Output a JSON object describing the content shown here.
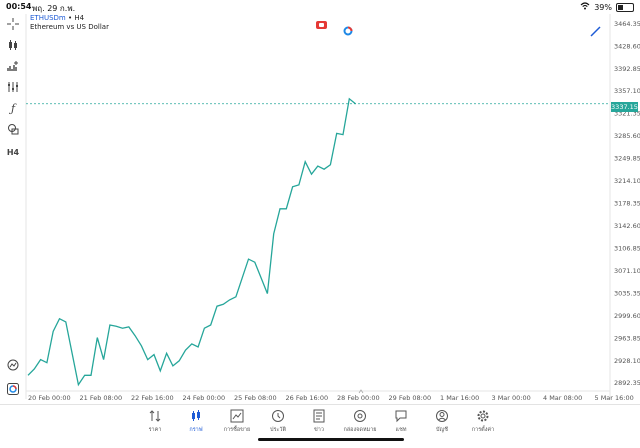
{
  "status": {
    "time": "00:54",
    "date": "พฤ. 29 ก.พ.",
    "battery": "39%",
    "battery_level": 0.39
  },
  "header": {
    "symbol": "ETHUSDm",
    "timeframe": "• H4",
    "description": "Ethereum vs US Dollar"
  },
  "toolbar": {
    "items": [
      "crosshair",
      "candles",
      "indicators",
      "settings-lines",
      "function",
      "shapes",
      "timeframe"
    ],
    "timeframe_label": "H4"
  },
  "price_axis": [
    "3464.35",
    "3428.60",
    "3392.85",
    "3357.10",
    "3321.35",
    "3285.60",
    "3249.85",
    "3214.10",
    "3178.35",
    "3142.60",
    "3106.85",
    "3071.10",
    "3035.35",
    "2999.60",
    "2963.85",
    "2928.10",
    "2892.35"
  ],
  "current_price": "3337.15",
  "x_axis": [
    "20 Feb 00:00",
    "21 Feb 08:00",
    "22 Feb 16:00",
    "24 Feb 00:00",
    "25 Feb 08:00",
    "26 Feb 16:00",
    "28 Feb 00:00",
    "29 Feb 08:00",
    "1 Mar 16:00",
    "3 Mar 00:00",
    "4 Mar 08:00",
    "5 Mar 16:00"
  ],
  "colors": {
    "line": "#26a69a",
    "accent": "#1e5bd6"
  },
  "chart_data": {
    "type": "line",
    "series": [
      {
        "values": [
          2905,
          2915,
          2930,
          2925,
          2975,
          2995,
          2990,
          2940,
          2890,
          2905,
          2905,
          2965,
          2930,
          2985,
          2983,
          2980,
          2982,
          2968,
          2952,
          2930,
          2938,
          2912,
          2940,
          2920,
          2928,
          2945,
          2955,
          2950,
          2980,
          2985,
          3015,
          3018,
          3025,
          3030,
          3060,
          3090,
          3085,
          3060,
          3035,
          3130,
          3170,
          3170,
          3205,
          3208,
          3245,
          3225,
          3238,
          3233,
          3240,
          3290,
          3288,
          3345,
          3337
        ]
      }
    ],
    "ylim": [
      2880,
      3480
    ]
  },
  "tabs": [
    {
      "label": "ราคา",
      "icon": "updown-icon"
    },
    {
      "label": "กราฟ",
      "icon": "candles-icon",
      "active": true
    },
    {
      "label": "การซื้อขาย",
      "icon": "trade-icon"
    },
    {
      "label": "ประวัติ",
      "icon": "history-icon"
    },
    {
      "label": "ข่าว",
      "icon": "news-icon"
    },
    {
      "label": "กล่องจดหมาย",
      "icon": "mail-icon"
    },
    {
      "label": "แชท",
      "icon": "chat-icon"
    },
    {
      "label": "บัญชี",
      "icon": "account-icon"
    },
    {
      "label": "การตั้งค่า",
      "icon": "gear-icon"
    }
  ]
}
